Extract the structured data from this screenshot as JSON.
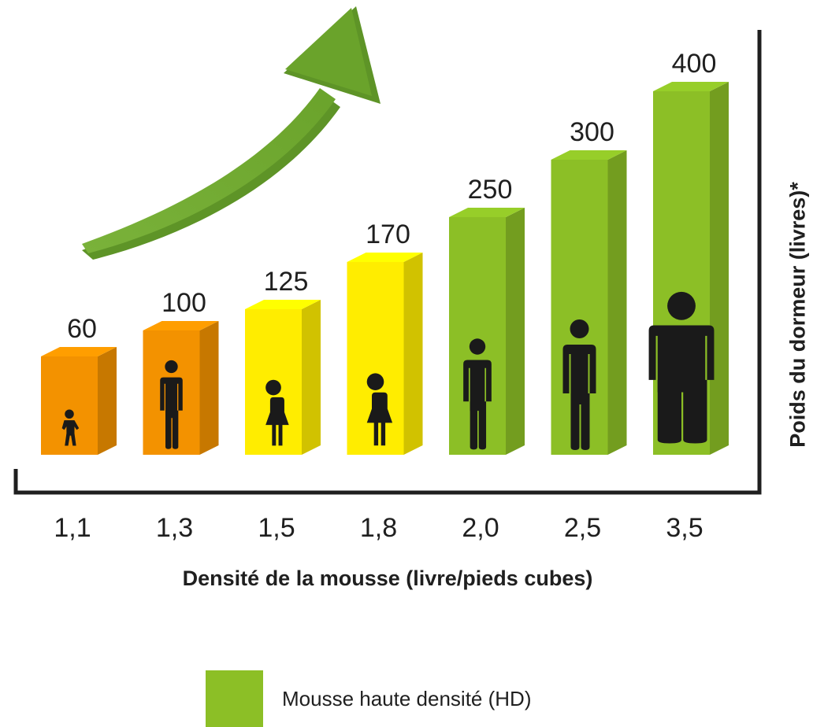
{
  "chart_data": {
    "type": "bar",
    "title": "",
    "xlabel": "Densité de la mousse (livre/pieds cubes)",
    "ylabel": "Poids du dormeur (livres)*",
    "categories": [
      "1,1",
      "1,3",
      "1,5",
      "1,8",
      "2,0",
      "2,5",
      "3,5"
    ],
    "values": [
      60,
      100,
      125,
      170,
      250,
      300,
      400
    ],
    "ylim": [
      0,
      400
    ],
    "grid": false,
    "bar_colors": [
      "#f39200",
      "#f39200",
      "#ffed00",
      "#ffed00",
      "#8cbf26",
      "#8cbf26",
      "#8cbf26"
    ],
    "figures": [
      "child",
      "man-small",
      "woman",
      "woman",
      "man",
      "man",
      "man-large"
    ],
    "trend_arrow": "up-right",
    "legend": [
      {
        "label": "Mousse haute densité (HD)",
        "color": "#8cbf26"
      }
    ],
    "legend_position": "bottom"
  }
}
